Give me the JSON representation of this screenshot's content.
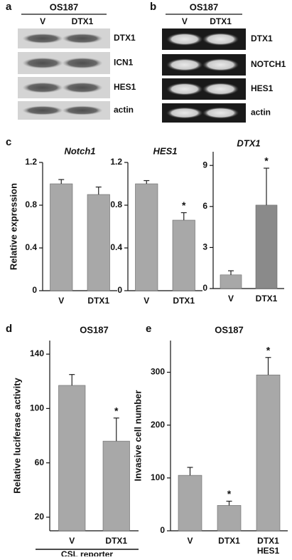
{
  "blots": [
    {
      "letter": "a",
      "title": "OS187",
      "lanes": [
        "V",
        "DTX1"
      ],
      "bands": [
        "DTX1",
        "ICN1",
        "HES1",
        "actin"
      ],
      "style": "western"
    },
    {
      "letter": "b",
      "title": "OS187",
      "lanes": [
        "V",
        "DTX1"
      ],
      "bands": [
        "DTX1",
        "NOTCH1",
        "HES1",
        "actin"
      ],
      "style": "gel"
    }
  ],
  "chart_data": [
    {
      "type": "bar",
      "letter": "c",
      "title": "Notch1",
      "ylabel": "Relative expression",
      "categories": [
        "V",
        "DTX1"
      ],
      "values": [
        1.0,
        0.9
      ],
      "errors": [
        0.04,
        0.07
      ],
      "annotations": [
        null,
        null
      ],
      "colors": [
        "#a8a8a8",
        "#a8a8a8"
      ],
      "ylim": [
        0,
        1.2
      ],
      "yticks": [
        0,
        0.4,
        0.8,
        1.2
      ]
    },
    {
      "type": "bar",
      "title": "HES1",
      "categories": [
        "V",
        "DTX1"
      ],
      "values": [
        1.0,
        0.66
      ],
      "errors": [
        0.03,
        0.07
      ],
      "annotations": [
        null,
        "*"
      ],
      "colors": [
        "#a8a8a8",
        "#a8a8a8"
      ],
      "ylim": [
        0,
        1.2
      ],
      "yticks": [
        0,
        0.4,
        0.8,
        1.2
      ]
    },
    {
      "type": "bar",
      "title": "DTX1",
      "categories": [
        "V",
        "DTX1"
      ],
      "values": [
        1.0,
        6.1
      ],
      "errors": [
        0.3,
        2.7
      ],
      "annotations": [
        null,
        "*"
      ],
      "colors": [
        "#a8a8a8",
        "#8a8a8a"
      ],
      "ylim": [
        0,
        10
      ],
      "yticks": [
        0,
        3,
        6,
        9
      ]
    },
    {
      "type": "bar",
      "letter": "d",
      "title": "OS187",
      "ylabel": "Relative luciferase activity",
      "xlabel": "CSL reporter",
      "categories": [
        "V",
        "DTX1"
      ],
      "values": [
        117,
        76
      ],
      "errors": [
        8,
        17
      ],
      "annotations": [
        null,
        "*"
      ],
      "colors": [
        "#a8a8a8",
        "#a8a8a8"
      ],
      "ylim": [
        10,
        150
      ],
      "yticks": [
        20,
        60,
        100,
        140
      ]
    },
    {
      "type": "bar",
      "letter": "e",
      "title": "OS187",
      "ylabel": "Invasive cell number",
      "categories": [
        [
          "V"
        ],
        [
          "DTX1"
        ],
        [
          "DTX1",
          "HES1"
        ]
      ],
      "values": [
        105,
        48,
        295
      ],
      "errors": [
        15,
        8,
        33
      ],
      "annotations": [
        null,
        "*",
        "*"
      ],
      "colors": [
        "#a8a8a8",
        "#a8a8a8",
        "#a8a8a8"
      ],
      "ylim": [
        0,
        360
      ],
      "yticks": [
        0,
        100,
        200,
        300
      ]
    }
  ]
}
